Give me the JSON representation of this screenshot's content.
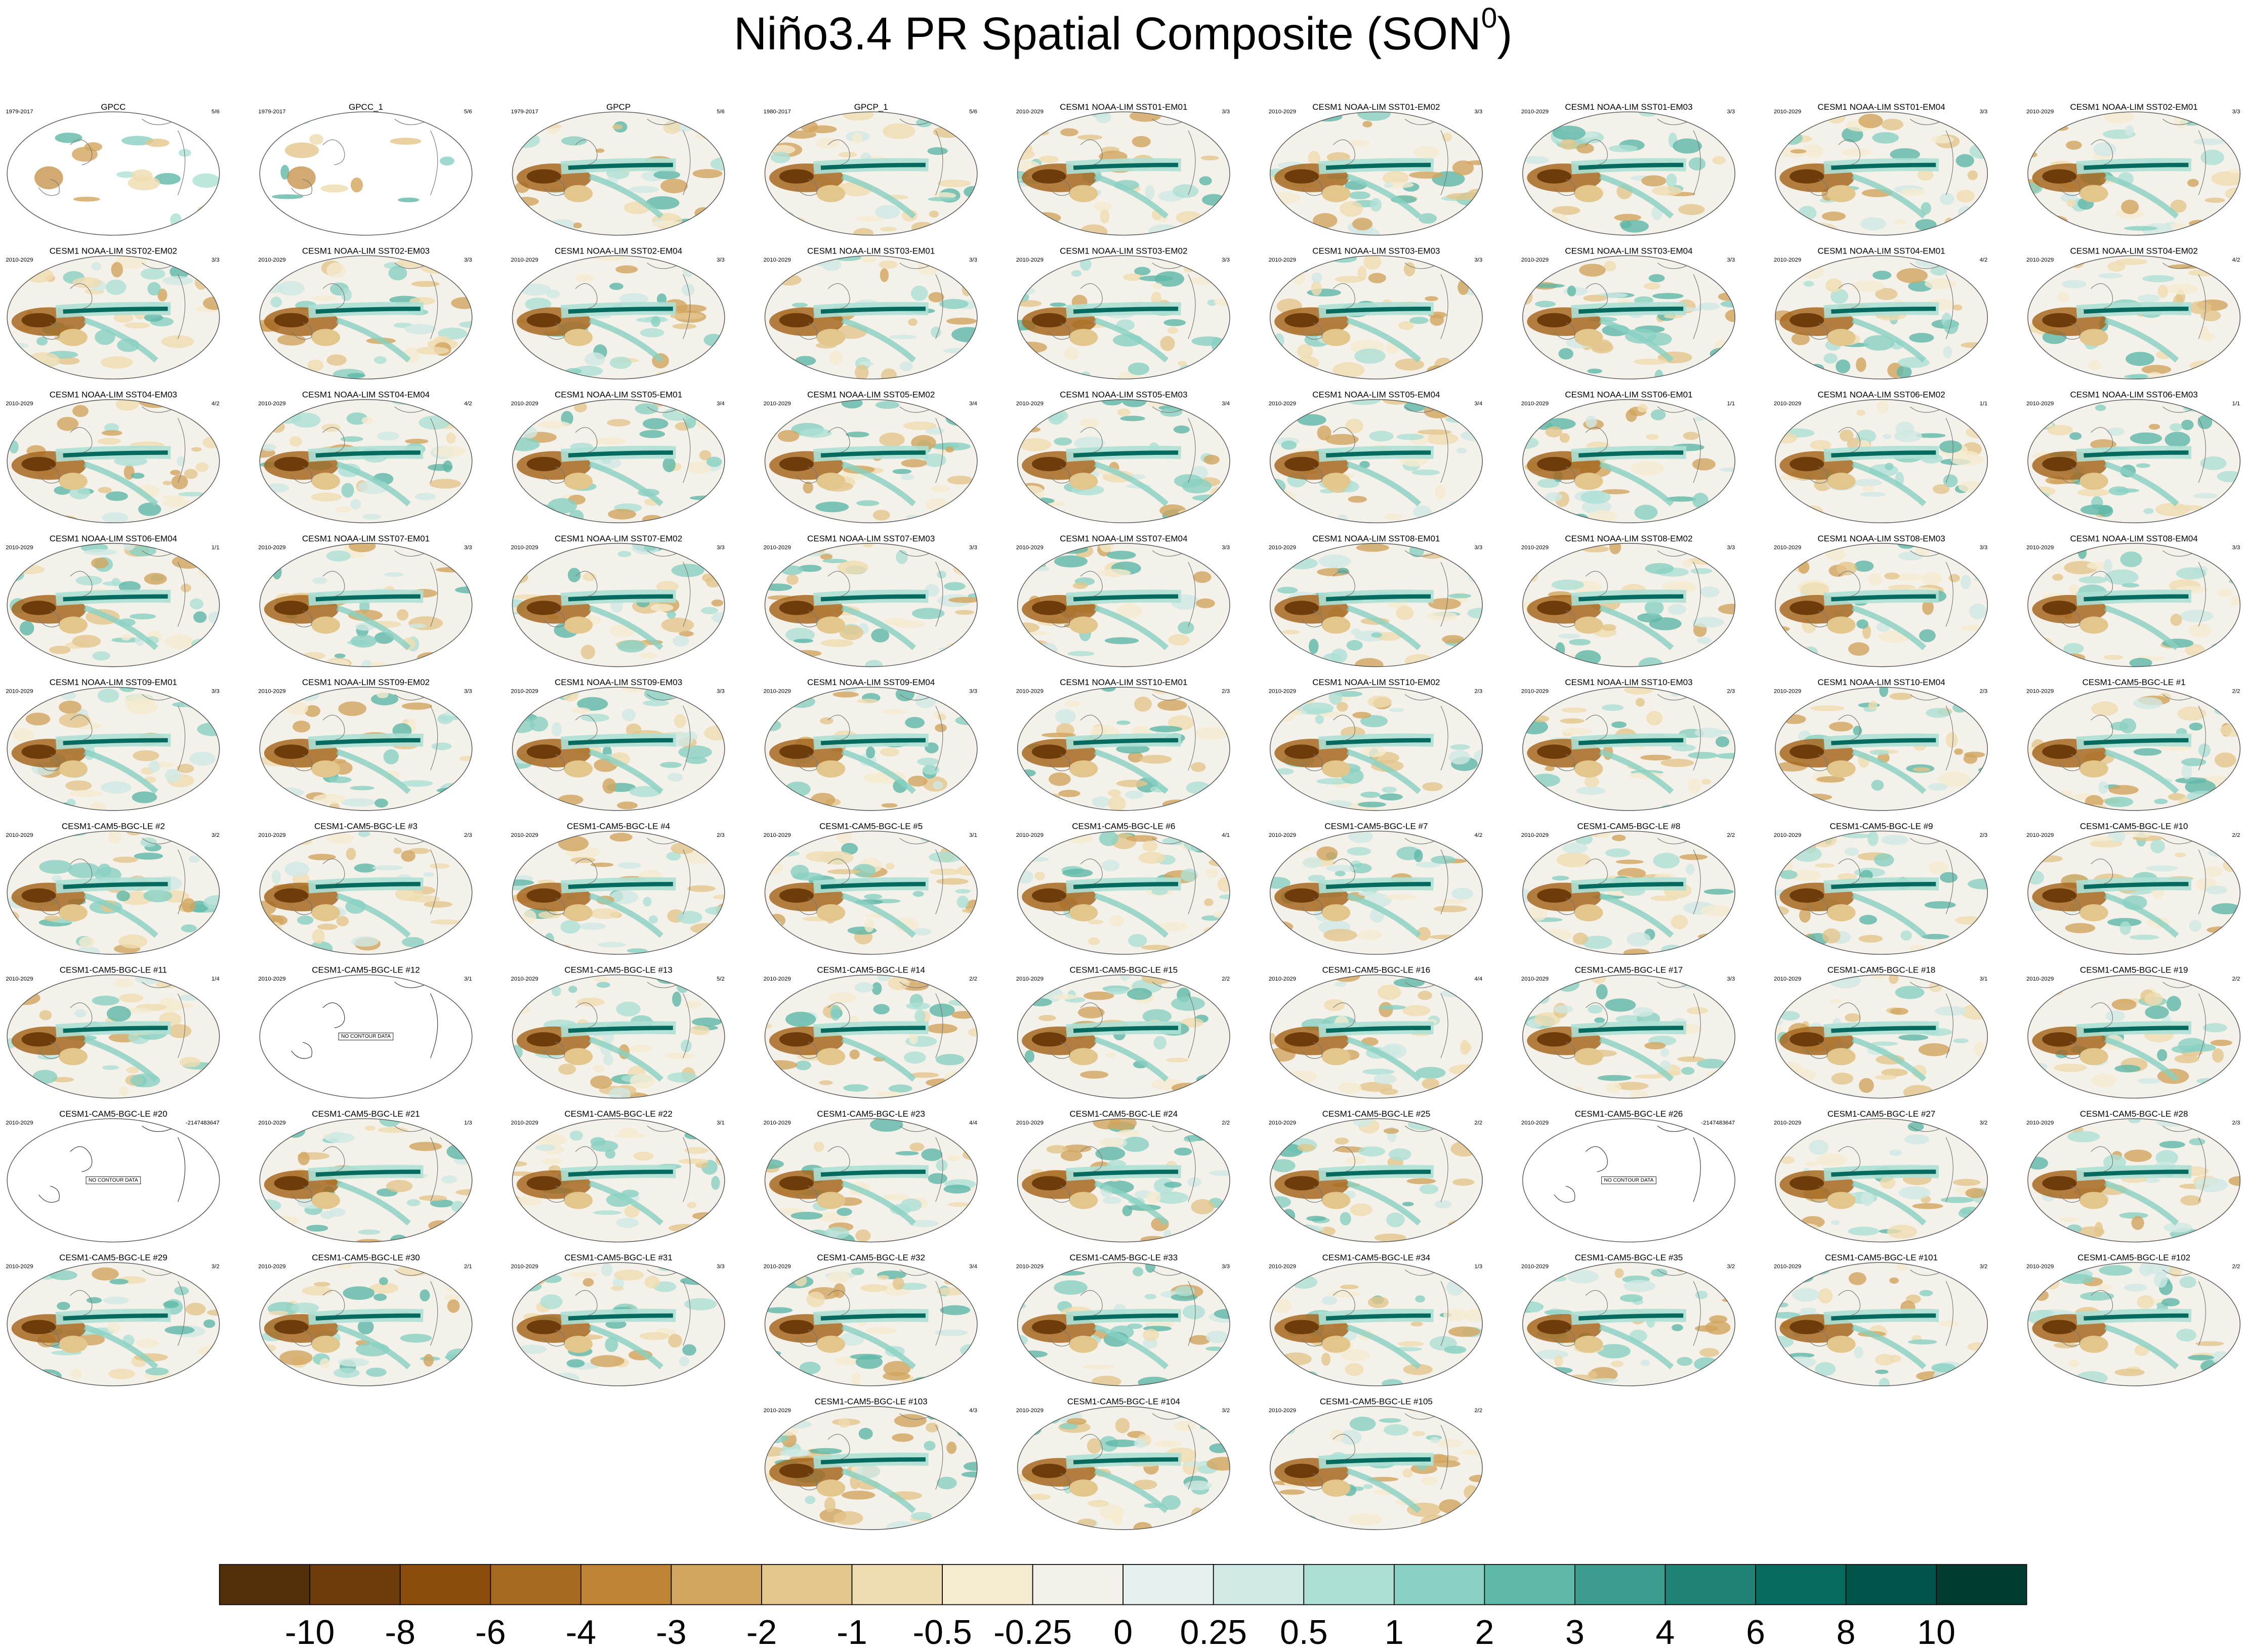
{
  "title": {
    "main": "Niño3.4 PR Spatial Composite (SON",
    "superscript": "0",
    "close": ")"
  },
  "panels": [
    {
      "title": "GPCC",
      "left": "1979-2017",
      "right": "5/6"
    },
    {
      "title": "GPCC_1",
      "left": "1979-2017",
      "right": "5/6"
    },
    {
      "title": "GPCP",
      "left": "1979-2017",
      "right": "5/6"
    },
    {
      "title": "GPCP_1",
      "left": "1980-2017",
      "right": "5/6"
    },
    {
      "title": "CESM1 NOAA-LIM SST01-EM01",
      "left": "2010-2029",
      "right": "3/3"
    },
    {
      "title": "CESM1 NOAA-LIM SST01-EM02",
      "left": "2010-2029",
      "right": "3/3"
    },
    {
      "title": "CESM1 NOAA-LIM SST01-EM03",
      "left": "2010-2029",
      "right": "3/3"
    },
    {
      "title": "CESM1 NOAA-LIM SST01-EM04",
      "left": "2010-2029",
      "right": "3/3"
    },
    {
      "title": "CESM1 NOAA-LIM SST02-EM01",
      "left": "2010-2029",
      "right": "3/3"
    },
    {
      "title": "CESM1 NOAA-LIM SST02-EM02",
      "left": "2010-2029",
      "right": "3/3"
    },
    {
      "title": "CESM1 NOAA-LIM SST02-EM03",
      "left": "2010-2029",
      "right": "3/3"
    },
    {
      "title": "CESM1 NOAA-LIM SST02-EM04",
      "left": "2010-2029",
      "right": "3/3"
    },
    {
      "title": "CESM1 NOAA-LIM SST03-EM01",
      "left": "2010-2029",
      "right": "3/3"
    },
    {
      "title": "CESM1 NOAA-LIM SST03-EM02",
      "left": "2010-2029",
      "right": "3/3"
    },
    {
      "title": "CESM1 NOAA-LIM SST03-EM03",
      "left": "2010-2029",
      "right": "3/3"
    },
    {
      "title": "CESM1 NOAA-LIM SST03-EM04",
      "left": "2010-2029",
      "right": "3/3"
    },
    {
      "title": "CESM1 NOAA-LIM SST04-EM01",
      "left": "2010-2029",
      "right": "4/2"
    },
    {
      "title": "CESM1 NOAA-LIM SST04-EM02",
      "left": "2010-2029",
      "right": "4/2"
    },
    {
      "title": "CESM1 NOAA-LIM SST04-EM03",
      "left": "2010-2029",
      "right": "4/2"
    },
    {
      "title": "CESM1 NOAA-LIM SST04-EM04",
      "left": "2010-2029",
      "right": "4/2"
    },
    {
      "title": "CESM1 NOAA-LIM SST05-EM01",
      "left": "2010-2029",
      "right": "3/4"
    },
    {
      "title": "CESM1 NOAA-LIM SST05-EM02",
      "left": "2010-2029",
      "right": "3/4"
    },
    {
      "title": "CESM1 NOAA-LIM SST05-EM03",
      "left": "2010-2029",
      "right": "3/4"
    },
    {
      "title": "CESM1 NOAA-LIM SST05-EM04",
      "left": "2010-2029",
      "right": "3/4"
    },
    {
      "title": "CESM1 NOAA-LIM SST06-EM01",
      "left": "2010-2029",
      "right": "1/1"
    },
    {
      "title": "CESM1 NOAA-LIM SST06-EM02",
      "left": "2010-2029",
      "right": "1/1"
    },
    {
      "title": "CESM1 NOAA-LIM SST06-EM03",
      "left": "2010-2029",
      "right": "1/1"
    },
    {
      "title": "CESM1 NOAA-LIM SST06-EM04",
      "left": "2010-2029",
      "right": "1/1"
    },
    {
      "title": "CESM1 NOAA-LIM SST07-EM01",
      "left": "2010-2029",
      "right": "3/3"
    },
    {
      "title": "CESM1 NOAA-LIM SST07-EM02",
      "left": "2010-2029",
      "right": "3/3"
    },
    {
      "title": "CESM1 NOAA-LIM SST07-EM03",
      "left": "2010-2029",
      "right": "3/3"
    },
    {
      "title": "CESM1 NOAA-LIM SST07-EM04",
      "left": "2010-2029",
      "right": "3/3"
    },
    {
      "title": "CESM1 NOAA-LIM SST08-EM01",
      "left": "2010-2029",
      "right": "3/3"
    },
    {
      "title": "CESM1 NOAA-LIM SST08-EM02",
      "left": "2010-2029",
      "right": "3/3"
    },
    {
      "title": "CESM1 NOAA-LIM SST08-EM03",
      "left": "2010-2029",
      "right": "3/3"
    },
    {
      "title": "CESM1 NOAA-LIM SST08-EM04",
      "left": "2010-2029",
      "right": "3/3"
    },
    {
      "title": "CESM1 NOAA-LIM SST09-EM01",
      "left": "2010-2029",
      "right": "3/3"
    },
    {
      "title": "CESM1 NOAA-LIM SST09-EM02",
      "left": "2010-2029",
      "right": "3/3"
    },
    {
      "title": "CESM1 NOAA-LIM SST09-EM03",
      "left": "2010-2029",
      "right": "3/3"
    },
    {
      "title": "CESM1 NOAA-LIM SST09-EM04",
      "left": "2010-2029",
      "right": "3/3"
    },
    {
      "title": "CESM1 NOAA-LIM SST10-EM01",
      "left": "2010-2029",
      "right": "2/3"
    },
    {
      "title": "CESM1 NOAA-LIM SST10-EM02",
      "left": "2010-2029",
      "right": "2/3"
    },
    {
      "title": "CESM1 NOAA-LIM SST10-EM03",
      "left": "2010-2029",
      "right": "2/3"
    },
    {
      "title": "CESM1 NOAA-LIM SST10-EM04",
      "left": "2010-2029",
      "right": "2/3"
    },
    {
      "title": "CESM1-CAM5-BGC-LE #1",
      "left": "2010-2029",
      "right": "2/2"
    },
    {
      "title": "CESM1-CAM5-BGC-LE #2",
      "left": "2010-2029",
      "right": "3/2"
    },
    {
      "title": "CESM1-CAM5-BGC-LE #3",
      "left": "2010-2029",
      "right": "2/3"
    },
    {
      "title": "CESM1-CAM5-BGC-LE #4",
      "left": "2010-2029",
      "right": "2/3"
    },
    {
      "title": "CESM1-CAM5-BGC-LE #5",
      "left": "2010-2029",
      "right": "3/1"
    },
    {
      "title": "CESM1-CAM5-BGC-LE #6",
      "left": "2010-2029",
      "right": "4/1"
    },
    {
      "title": "CESM1-CAM5-BGC-LE #7",
      "left": "2010-2029",
      "right": "4/2"
    },
    {
      "title": "CESM1-CAM5-BGC-LE #8",
      "left": "2010-2029",
      "right": "2/2"
    },
    {
      "title": "CESM1-CAM5-BGC-LE #9",
      "left": "2010-2029",
      "right": "2/3"
    },
    {
      "title": "CESM1-CAM5-BGC-LE #10",
      "left": "2010-2029",
      "right": "2/2"
    },
    {
      "title": "CESM1-CAM5-BGC-LE #11",
      "left": "2010-2029",
      "right": "1/4"
    },
    {
      "title": "CESM1-CAM5-BGC-LE #12",
      "left": "2010-2029",
      "right": "3/1",
      "note": "NO CONTOUR DATA"
    },
    {
      "title": "CESM1-CAM5-BGC-LE #13",
      "left": "2010-2029",
      "right": "5/2"
    },
    {
      "title": "CESM1-CAM5-BGC-LE #14",
      "left": "2010-2029",
      "right": "2/2"
    },
    {
      "title": "CESM1-CAM5-BGC-LE #15",
      "left": "2010-2029",
      "right": "2/2"
    },
    {
      "title": "CESM1-CAM5-BGC-LE #16",
      "left": "2010-2029",
      "right": "4/4"
    },
    {
      "title": "CESM1-CAM5-BGC-LE #17",
      "left": "2010-2029",
      "right": "3/3"
    },
    {
      "title": "CESM1-CAM5-BGC-LE #18",
      "left": "2010-2029",
      "right": "3/1"
    },
    {
      "title": "CESM1-CAM5-BGC-LE #19",
      "left": "2010-2029",
      "right": "2/2"
    },
    {
      "title": "CESM1-CAM5-BGC-LE #20",
      "left": "2010-2029",
      "right": "-2147483647",
      "note": "NO CONTOUR DATA"
    },
    {
      "title": "CESM1-CAM5-BGC-LE #21",
      "left": "2010-2029",
      "right": "1/3"
    },
    {
      "title": "CESM1-CAM5-BGC-LE #22",
      "left": "2010-2029",
      "right": "3/1"
    },
    {
      "title": "CESM1-CAM5-BGC-LE #23",
      "left": "2010-2029",
      "right": "4/4"
    },
    {
      "title": "CESM1-CAM5-BGC-LE #24",
      "left": "2010-2029",
      "right": "2/2"
    },
    {
      "title": "CESM1-CAM5-BGC-LE #25",
      "left": "2010-2029",
      "right": "2/2"
    },
    {
      "title": "CESM1-CAM5-BGC-LE #26",
      "left": "2010-2029",
      "right": "-2147483647",
      "note": "NO CONTOUR DATA"
    },
    {
      "title": "CESM1-CAM5-BGC-LE #27",
      "left": "2010-2029",
      "right": "3/2"
    },
    {
      "title": "CESM1-CAM5-BGC-LE #28",
      "left": "2010-2029",
      "right": "2/3"
    },
    {
      "title": "CESM1-CAM5-BGC-LE #29",
      "left": "2010-2029",
      "right": "3/2"
    },
    {
      "title": "CESM1-CAM5-BGC-LE #30",
      "left": "2010-2029",
      "right": "2/1"
    },
    {
      "title": "CESM1-CAM5-BGC-LE #31",
      "left": "2010-2029",
      "right": "3/3"
    },
    {
      "title": "CESM1-CAM5-BGC-LE #32",
      "left": "2010-2029",
      "right": "3/4"
    },
    {
      "title": "CESM1-CAM5-BGC-LE #33",
      "left": "2010-2029",
      "right": "3/3"
    },
    {
      "title": "CESM1-CAM5-BGC-LE #34",
      "left": "2010-2029",
      "right": "1/3"
    },
    {
      "title": "CESM1-CAM5-BGC-LE #35",
      "left": "2010-2029",
      "right": "3/2"
    },
    {
      "title": "CESM1-CAM5-BGC-LE #101",
      "left": "2010-2029",
      "right": "3/2"
    },
    {
      "title": "CESM1-CAM5-BGC-LE #102",
      "left": "2010-2029",
      "right": "2/2"
    },
    {
      "title": "CESM1-CAM5-BGC-LE #103",
      "left": "2010-2029",
      "right": "4/3"
    },
    {
      "title": "CESM1-CAM5-BGC-LE #104",
      "left": "2010-2029",
      "right": "3/2"
    },
    {
      "title": "CESM1-CAM5-BGC-LE #105",
      "left": "2010-2029",
      "right": "2/2"
    }
  ],
  "colorbar": {
    "colors": [
      "#54300a",
      "#6e3b0a",
      "#8a4d0d",
      "#a66920",
      "#bf8433",
      "#d2a55e",
      "#e3c68b",
      "#efdcb0",
      "#f5ebcf",
      "#f4f1ea",
      "#e6f1ef",
      "#cfe9e4",
      "#ade0d5",
      "#88d1c2",
      "#5fb8a8",
      "#3c9d8f",
      "#1f8275",
      "#076a5e",
      "#01544a",
      "#003c30"
    ],
    "labels": [
      -10,
      -8,
      -6,
      -4,
      -3,
      -2,
      -1,
      -0.5,
      -0.25,
      0,
      0.25,
      0.5,
      1,
      2,
      3,
      4,
      6,
      8,
      10
    ]
  }
}
